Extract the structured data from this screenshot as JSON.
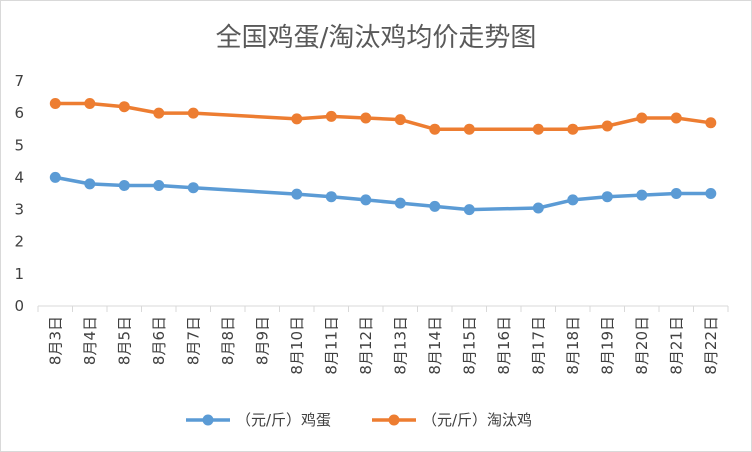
{
  "chart_data": {
    "type": "line",
    "title": "全国鸡蛋/淘汰鸡均价走势图",
    "xlabel": "",
    "ylabel": "",
    "ylim": [
      0,
      7
    ],
    "yticks": [
      0,
      1,
      2,
      3,
      4,
      5,
      6,
      7
    ],
    "grid": false,
    "legend_position": "bottom",
    "categories": [
      "8月3日",
      "8月4日",
      "8月5日",
      "8月6日",
      "8月7日",
      "8月8日",
      "8月9日",
      "8月10日",
      "8月11日",
      "8月12日",
      "8月13日",
      "8月14日",
      "8月15日",
      "8月16日",
      "8月17日",
      "8月18日",
      "8月19日",
      "8月20日",
      "8月21日",
      "8月22日"
    ],
    "series": [
      {
        "name": "（元/斤）鸡蛋",
        "color": "#5b9bd5",
        "values": [
          4.0,
          3.8,
          3.75,
          3.75,
          3.68,
          null,
          null,
          3.48,
          3.4,
          3.3,
          3.2,
          3.1,
          3.0,
          null,
          3.05,
          3.3,
          3.4,
          3.45,
          3.5,
          3.5
        ]
      },
      {
        "name": "（元/斤）淘汰鸡",
        "color": "#ed7d31",
        "values": [
          6.3,
          6.3,
          6.2,
          6.0,
          6.0,
          null,
          null,
          5.82,
          5.9,
          5.85,
          5.8,
          5.5,
          5.5,
          null,
          5.5,
          5.5,
          5.6,
          5.85,
          5.85,
          5.7
        ]
      }
    ]
  }
}
